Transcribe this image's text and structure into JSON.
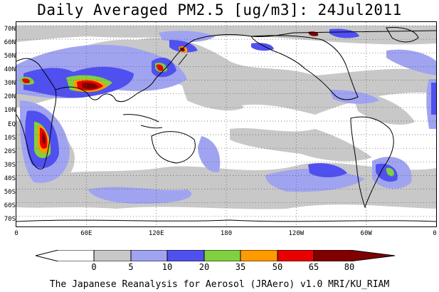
{
  "title": "Daily Averaged PM2.5 [ug/m3]: 24Jul2011",
  "footer": "The Japanese Reanalysis for Aerosol (JRAero) v1.0 MRI/KU_RIAM",
  "map": {
    "projection": "equirectangular",
    "lon_range": [
      0,
      360
    ],
    "lat_range": [
      -75,
      75
    ],
    "gridlines": "dotted",
    "lat_labels": [
      "70N",
      "60N",
      "50N",
      "40N",
      "30N",
      "20N",
      "10N",
      "EQ",
      "10S",
      "20S",
      "30S",
      "40S",
      "50S",
      "60S",
      "70S"
    ],
    "lon_labels": [
      "0",
      "60E",
      "120E",
      "180",
      "120W",
      "60W",
      "0"
    ]
  },
  "legend": {
    "ticks": [
      "0",
      "5",
      "10",
      "20",
      "35",
      "50",
      "65",
      "80"
    ],
    "colors": [
      "#ffffff",
      "#c8c8c8",
      "#a0a4f0",
      "#5050f0",
      "#80d040",
      "#ff9a00",
      "#e80000",
      "#800000"
    ]
  }
}
